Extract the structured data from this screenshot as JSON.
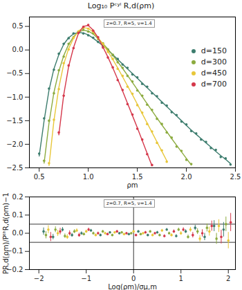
{
  "chart_data": [
    {
      "type": "line",
      "title": "Log₁₀ Pᶜʸˡ R,d(ρm)",
      "x_label": "ρm",
      "xlim": [
        0.4,
        2.5
      ],
      "ylim": [
        -2.5,
        0.7
      ],
      "xticks": [
        0.5,
        {
          "value": 1,
          "label": "1.0"
        },
        1.5,
        {
          "value": 2,
          "label": "2.0"
        },
        2.5
      ],
      "yticks": [
        {
          "value": -2.5,
          "label": "−2.5"
        },
        {
          "value": -2,
          "label": "−2.0"
        },
        {
          "value": -1.5,
          "label": "−1.5"
        },
        {
          "value": -1,
          "label": "−1.0"
        },
        {
          "value": -0.5,
          "label": "−0.5"
        },
        {
          "value": 0,
          "label": "0.0"
        },
        0.5
      ],
      "annotations": [
        "z=0.7, R=5, ν=1.4"
      ],
      "legend": "right",
      "grid": false,
      "series": [
        {
          "name": "d=150",
          "color": "#3d7d6e",
          "marker": "circle",
          "x": [
            0.5,
            0.55,
            0.6,
            0.65,
            0.7,
            0.75,
            0.8,
            0.85,
            0.9,
            0.95,
            1.0,
            1.05,
            1.1,
            1.15,
            1.2,
            1.25,
            1.3,
            1.35,
            1.4,
            1.45,
            1.5,
            1.55,
            1.6,
            1.65,
            1.7,
            1.75,
            1.8,
            1.85,
            1.9,
            1.95,
            2.0,
            2.05,
            2.1,
            2.15,
            2.2,
            2.25,
            2.3,
            2.35,
            2.4,
            2.45
          ],
          "values": [
            -2.2,
            -1.45,
            -0.82,
            -0.42,
            -0.08,
            0.13,
            0.25,
            0.35,
            0.38,
            0.35,
            0.31,
            0.26,
            0.17,
            0.08,
            0.01,
            -0.11,
            -0.19,
            -0.31,
            -0.38,
            -0.52,
            -0.58,
            -0.72,
            -0.78,
            -0.92,
            -0.98,
            -1.12,
            -1.18,
            -1.32,
            -1.38,
            -1.52,
            -1.58,
            -1.72,
            -1.77,
            -1.9,
            -1.95,
            -2.08,
            -2.12,
            -2.27,
            -2.3,
            -2.43
          ],
          "fit": [
            -2.25,
            -1.5,
            -0.85,
            -0.4,
            -0.1,
            0.12,
            0.26,
            0.34,
            0.37,
            0.36,
            0.32,
            0.25,
            0.17,
            0.09,
            0.0,
            -0.1,
            -0.2,
            -0.3,
            -0.4,
            -0.5,
            -0.6,
            -0.7,
            -0.8,
            -0.9,
            -1.0,
            -1.1,
            -1.2,
            -1.3,
            -1.4,
            -1.5,
            -1.6,
            -1.7,
            -1.79,
            -1.88,
            -1.97,
            -2.06,
            -2.15,
            -2.24,
            -2.32,
            -2.41
          ]
        },
        {
          "name": "d=300",
          "color": "#8cab3f",
          "marker": "circle",
          "x": [
            0.55,
            0.6,
            0.65,
            0.7,
            0.75,
            0.8,
            0.85,
            0.9,
            0.95,
            1.0,
            1.05,
            1.1,
            1.15,
            1.2,
            1.25,
            1.3,
            1.35,
            1.4,
            1.45,
            1.5,
            1.55,
            1.6,
            1.65,
            1.7,
            1.75,
            1.8,
            1.85,
            1.9,
            1.95,
            2.0,
            2.05
          ],
          "values": [
            -2.35,
            -1.5,
            -0.92,
            -0.43,
            -0.14,
            0.13,
            0.27,
            0.39,
            0.43,
            0.39,
            0.35,
            0.23,
            0.14,
            0.01,
            -0.1,
            -0.26,
            -0.38,
            -0.55,
            -0.67,
            -0.86,
            -0.97,
            -1.16,
            -1.27,
            -1.46,
            -1.57,
            -1.75,
            -1.86,
            -2.05,
            -2.14,
            -2.33,
            -2.42
          ],
          "fit": [
            -2.4,
            -1.55,
            -0.9,
            -0.45,
            -0.12,
            0.12,
            0.28,
            0.38,
            0.42,
            0.4,
            0.34,
            0.24,
            0.13,
            0.02,
            -0.11,
            -0.25,
            -0.39,
            -0.54,
            -0.69,
            -0.84,
            -0.99,
            -1.14,
            -1.29,
            -1.44,
            -1.59,
            -1.73,
            -1.88,
            -2.02,
            -2.16,
            -2.3,
            -2.44
          ]
        },
        {
          "name": "d=450",
          "color": "#e8c73a",
          "marker": "circle",
          "x": [
            0.6,
            0.65,
            0.7,
            0.75,
            0.8,
            0.85,
            0.9,
            0.95,
            1.0,
            1.05,
            1.1,
            1.15,
            1.2,
            1.25,
            1.3,
            1.35,
            1.4,
            1.45,
            1.5,
            1.55,
            1.6,
            1.65,
            1.7,
            1.75,
            1.8
          ],
          "values": [
            -2.4,
            -1.48,
            -0.83,
            -0.28,
            0.01,
            0.26,
            0.39,
            0.48,
            0.45,
            0.39,
            0.25,
            0.13,
            -0.04,
            -0.19,
            -0.4,
            -0.55,
            -0.78,
            -0.93,
            -1.17,
            -1.33,
            -1.57,
            -1.73,
            -1.97,
            -2.13,
            -2.37
          ],
          "fit": [
            -2.45,
            -1.5,
            -0.8,
            -0.3,
            0.03,
            0.25,
            0.4,
            0.47,
            0.46,
            0.38,
            0.26,
            0.12,
            -0.03,
            -0.2,
            -0.38,
            -0.57,
            -0.76,
            -0.95,
            -1.15,
            -1.35,
            -1.55,
            -1.75,
            -1.95,
            -2.15,
            -2.35
          ]
        },
        {
          "name": "d=700",
          "color": "#d5384b",
          "marker": "circle",
          "x": [
            0.7,
            0.75,
            0.8,
            0.85,
            0.9,
            0.95,
            1.0,
            1.05,
            1.1,
            1.15,
            1.2,
            1.25,
            1.3,
            1.35,
            1.4,
            1.45,
            1.5,
            1.55,
            1.6,
            1.65
          ],
          "values": [
            -1.75,
            -0.97,
            -0.33,
            0.04,
            0.36,
            0.49,
            0.53,
            0.41,
            0.27,
            0.05,
            -0.16,
            -0.37,
            -0.64,
            -0.85,
            -1.15,
            -1.37,
            -1.67,
            -1.9,
            -2.21,
            -2.44
          ],
          "fit": [
            -1.8,
            -0.95,
            -0.35,
            0.05,
            0.35,
            0.5,
            0.52,
            0.42,
            0.26,
            0.06,
            -0.15,
            -0.38,
            -0.62,
            -0.87,
            -1.13,
            -1.39,
            -1.65,
            -1.92,
            -2.19,
            -2.46
          ]
        }
      ]
    },
    {
      "type": "scatter",
      "x_label": "Log(ρm)/σμ,m",
      "y_label": "PR,d(ρm)/PᵗʰR,d(ρm)−1",
      "xlim": [
        -2.2,
        2.15
      ],
      "ylim": [
        -0.2,
        0.2
      ],
      "xticks": [
        {
          "value": -2,
          "label": "−2"
        },
        {
          "value": -1,
          "label": "−1"
        },
        0,
        1,
        2
      ],
      "yticks": [
        {
          "value": -0.2,
          "label": "−0.2"
        },
        {
          "value": -0.1,
          "label": "−0.1"
        },
        {
          "value": 0,
          "label": "0.0"
        },
        0.1,
        0.2
      ],
      "annotations": [
        "z=0.7, R=5, ν=1.4"
      ],
      "hlines": [
        -0.05,
        0.05
      ],
      "vlines": [
        0
      ],
      "grid": false,
      "series": [
        {
          "name": "d=150",
          "color": "#3d7d6e",
          "marker": "circle",
          "x": [
            -1.9,
            -1.7,
            -1.5,
            -1.3,
            -1.1,
            -0.9,
            -0.7,
            -0.5,
            -0.3,
            -0.1,
            0.1,
            0.3,
            0.5,
            0.7,
            0.9,
            1.1,
            1.3,
            1.5,
            1.7,
            1.9
          ],
          "values": [
            0.01,
            -0.02,
            0.02,
            -0.01,
            0.0,
            0.015,
            -0.01,
            0.005,
            0.0,
            -0.005,
            0.01,
            -0.01,
            0.005,
            0.02,
            -0.015,
            0.01,
            0.03,
            -0.02,
            0.04,
            0.02
          ],
          "errors": [
            0.02,
            0.015,
            0.012,
            0.01,
            0.008,
            0.007,
            0.006,
            0.005,
            0.005,
            0.005,
            0.005,
            0.005,
            0.006,
            0.007,
            0.008,
            0.01,
            0.015,
            0.02,
            0.03,
            0.04
          ]
        },
        {
          "name": "d=300",
          "color": "#8cab3f",
          "marker": "circle",
          "x": [
            -1.85,
            -1.65,
            -1.45,
            -1.25,
            -1.05,
            -0.85,
            -0.65,
            -0.45,
            -0.25,
            -0.05,
            0.15,
            0.35,
            0.55,
            0.75,
            0.95,
            1.15,
            1.35,
            1.55,
            1.75,
            1.95
          ],
          "values": [
            -0.01,
            0.02,
            -0.015,
            0.01,
            -0.005,
            0.0,
            0.01,
            -0.01,
            0.005,
            0.0,
            -0.005,
            0.01,
            -0.01,
            0.0,
            0.02,
            -0.02,
            0.01,
            0.03,
            -0.03,
            0.05
          ],
          "errors": [
            0.02,
            0.016,
            0.012,
            0.01,
            0.008,
            0.007,
            0.006,
            0.005,
            0.005,
            0.005,
            0.005,
            0.005,
            0.006,
            0.007,
            0.009,
            0.011,
            0.016,
            0.022,
            0.03,
            0.04
          ]
        },
        {
          "name": "d=450",
          "color": "#e8c73a",
          "marker": "circle",
          "x": [
            -1.8,
            -1.6,
            -1.4,
            -1.2,
            -1.0,
            -0.8,
            -0.6,
            -0.4,
            -0.2,
            0.0,
            0.2,
            0.4,
            0.6,
            0.8,
            1.0,
            1.2,
            1.4,
            1.6,
            1.8,
            2.0
          ],
          "values": [
            0.02,
            0.0,
            -0.02,
            0.015,
            0.01,
            -0.01,
            0.0,
            0.005,
            -0.005,
            0.01,
            0.0,
            -0.01,
            0.015,
            -0.01,
            0.0,
            0.02,
            -0.03,
            0.01,
            0.04,
            -0.04
          ],
          "errors": [
            0.022,
            0.017,
            0.013,
            0.01,
            0.008,
            0.007,
            0.006,
            0.005,
            0.005,
            0.005,
            0.005,
            0.006,
            0.007,
            0.008,
            0.01,
            0.013,
            0.018,
            0.025,
            0.035,
            0.045
          ]
        },
        {
          "name": "d=700",
          "color": "#d5384b",
          "marker": "circle",
          "x": [
            -1.75,
            -1.55,
            -1.35,
            -1.15,
            -0.95,
            -0.75,
            -0.55,
            -0.35,
            -0.15,
            0.05,
            0.25,
            0.45,
            0.65,
            0.85,
            1.05,
            1.25,
            1.45,
            1.65,
            1.85,
            2.05
          ],
          "values": [
            -0.02,
            0.01,
            0.0,
            -0.01,
            0.02,
            0.0,
            -0.005,
            0.01,
            0.0,
            -0.01,
            0.005,
            0.0,
            -0.015,
            0.01,
            0.02,
            -0.01,
            0.0,
            0.04,
            -0.02,
            0.06
          ],
          "errors": [
            0.025,
            0.018,
            0.014,
            0.011,
            0.009,
            0.007,
            0.006,
            0.006,
            0.005,
            0.005,
            0.006,
            0.006,
            0.007,
            0.009,
            0.011,
            0.015,
            0.02,
            0.028,
            0.038,
            0.05
          ]
        }
      ]
    }
  ]
}
